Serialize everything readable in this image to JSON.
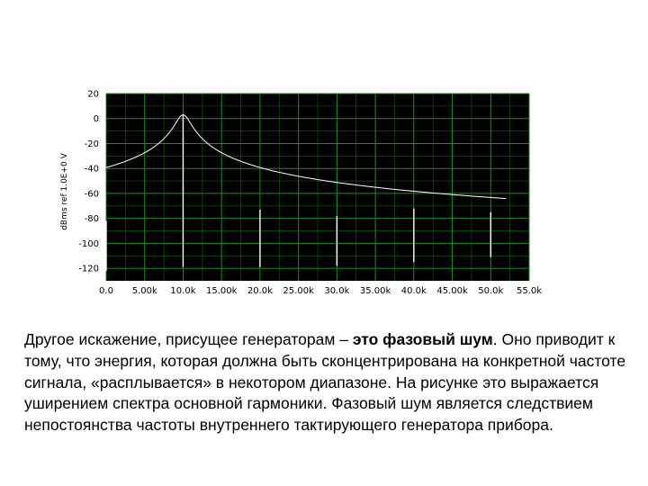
{
  "caption": {
    "part1": "Другое искажение, присущее генераторам – ",
    "bold": "это фазовый шум",
    "part2": ". Оно приводит к тому, что энергия, которая должна быть сконцентрирована на конкретной частоте сигнала, «расплывается» в некотором диапазоне. На рисунке это выражается уширением спектра основной гармоники. Фазовый шум является следствием непостоянства частоты внутреннего тактирующего генератора прибора."
  },
  "colors": {
    "plot_background": "#000000",
    "grid": "#1f8a1f",
    "trace": "#ffffff"
  },
  "chart_data": {
    "type": "line",
    "title": "",
    "xlabel": "",
    "ylabel": "dBms ref 1.0E+0 V",
    "xlim": [
      0,
      55000
    ],
    "ylim": [
      -130,
      20
    ],
    "x_ticks": [
      "0.0",
      "5.00k",
      "10.0k",
      "15.00k",
      "20.0k",
      "25.00k",
      "30.0k",
      "35.00k",
      "40.0k",
      "45.00k",
      "50.0k",
      "55.0k"
    ],
    "y_ticks": [
      "20",
      "0",
      "-20",
      "-40",
      "-60",
      "-80",
      "-100",
      "-120"
    ],
    "grid": true,
    "series": [
      {
        "noise_floor": [
          [
            0,
            -122
          ],
          [
            5000,
            -120
          ],
          [
            10000,
            -119
          ],
          [
            15000,
            -119
          ],
          [
            20000,
            -119
          ],
          [
            25000,
            -118
          ],
          [
            30000,
            -118
          ],
          [
            35000,
            -117
          ],
          [
            40000,
            -115
          ],
          [
            45000,
            -113
          ],
          [
            50000,
            -111
          ],
          [
            52000,
            -112
          ]
        ],
        "peaks": [
          {
            "x": 0,
            "y": -82,
            "width": 150
          },
          {
            "x": 10000,
            "y": 3,
            "width": 2500
          },
          {
            "x": 20000,
            "y": -73,
            "width": 120
          },
          {
            "x": 30000,
            "y": -78,
            "width": 120
          },
          {
            "x": 40000,
            "y": -72,
            "width": 120
          },
          {
            "x": 50000,
            "y": -75,
            "width": 120
          }
        ]
      }
    ]
  }
}
